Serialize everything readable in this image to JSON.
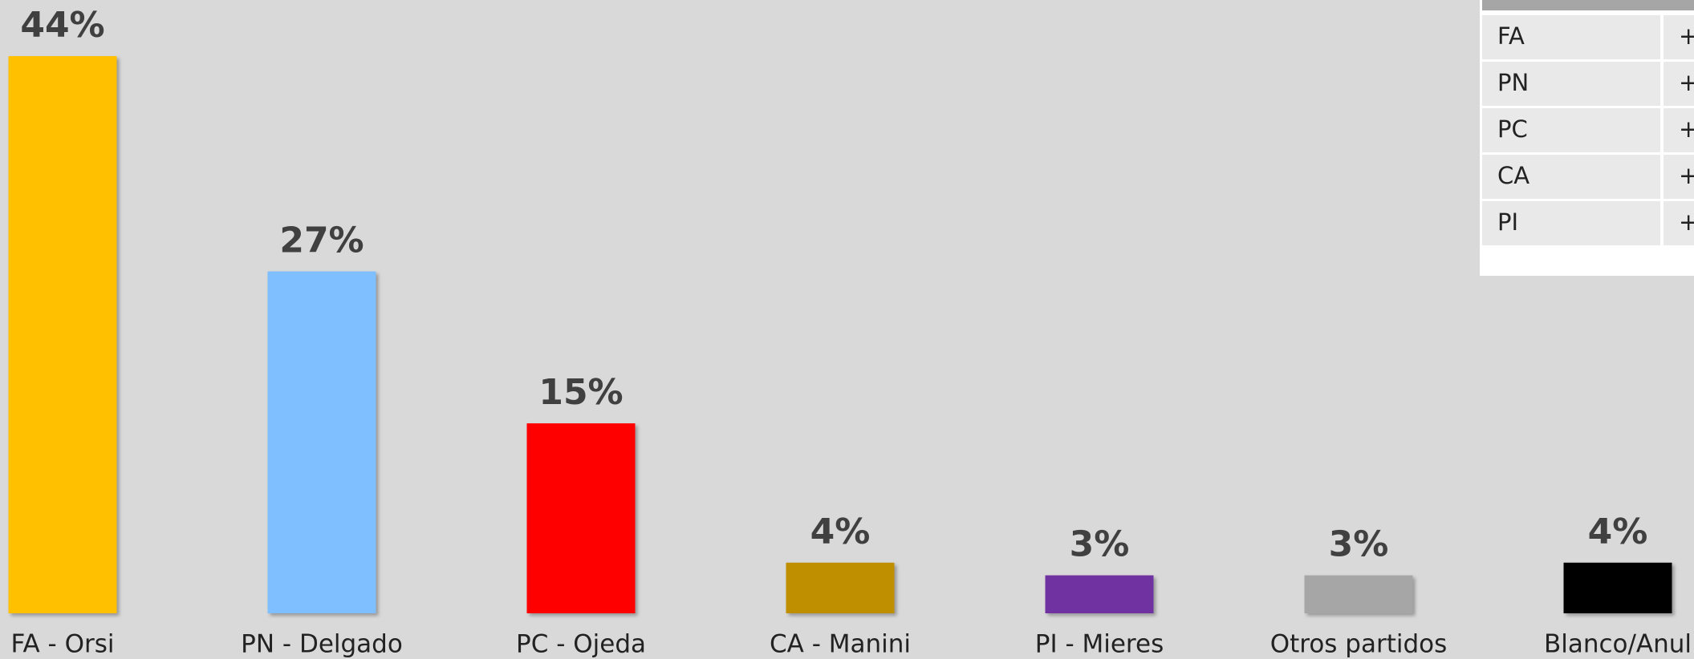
{
  "chart_data": {
    "type": "bar",
    "categories": [
      "FA - Orsi",
      "PN - Delgado",
      "PC - Ojeda",
      "CA - Manini",
      "PI - Mieres",
      "Otros partidos",
      "Blanco/Anul"
    ],
    "values": [
      44,
      27,
      15,
      4,
      3,
      3,
      4
    ],
    "value_labels": [
      "44%",
      "27%",
      "15%",
      "4%",
      "3%",
      "3%",
      "4%"
    ],
    "colors": [
      "#ffc000",
      "#80bfff",
      "#ff0000",
      "#bf8f00",
      "#7030a0",
      "#a6a6a6",
      "#000000"
    ]
  },
  "table": {
    "rows": [
      [
        "FA",
        "+"
      ],
      [
        "PN",
        "+"
      ],
      [
        "PC",
        "+"
      ],
      [
        "CA",
        "+"
      ],
      [
        "PI",
        "+"
      ]
    ]
  }
}
